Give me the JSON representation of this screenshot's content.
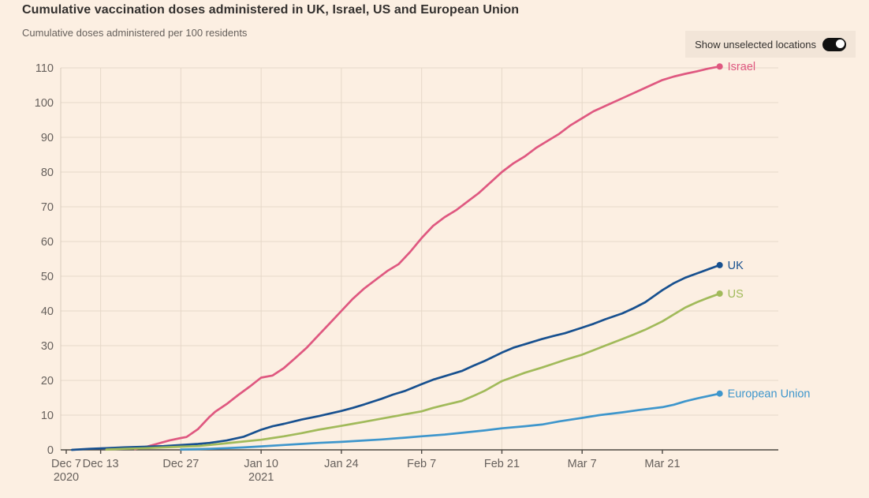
{
  "header": {
    "title": "Cumulative vaccination doses administered in UK, Israel, US and European Union",
    "subtitle": "Cumulative doses administered per 100 residents"
  },
  "controls": {
    "show_unselected_label": "Show unselected locations",
    "toggle_state": "on"
  },
  "colors": {
    "background": "#fcefe2",
    "panel": "#f2e5d8",
    "title_text": "#33302e",
    "muted_text": "#66605c",
    "gridline": "#e6d8c9",
    "axis_line": "#4d4843"
  },
  "chart_data": {
    "type": "line",
    "title": "Cumulative vaccination doses administered in UK, Israel, US and European Union",
    "ylabel": "Cumulative doses administered per 100 residents",
    "xlabel": "",
    "ylim": [
      0,
      110
    ],
    "ytick_step": 10,
    "x_start": "2020-12-07",
    "x_end": "2021-03-31",
    "x_unit": "days since Dec 7 2020",
    "grid": "on",
    "legend_position": "line-end-labels",
    "x_ticks": [
      {
        "day": 0,
        "label": "Dec 7",
        "year": "2020"
      },
      {
        "day": 6,
        "label": "Dec 13"
      },
      {
        "day": 20,
        "label": "Dec 27"
      },
      {
        "day": 34,
        "label": "Jan 10",
        "year": "2021"
      },
      {
        "day": 48,
        "label": "Jan 24"
      },
      {
        "day": 62,
        "label": "Feb 7"
      },
      {
        "day": 76,
        "label": "Feb 21"
      },
      {
        "day": 90,
        "label": "Mar 7"
      },
      {
        "day": 104,
        "label": "Mar 21"
      }
    ],
    "grid_days": [
      6,
      20,
      34,
      48,
      62,
      76,
      90
    ],
    "series": [
      {
        "name": "Israel",
        "color": "#df5880",
        "final_value": 110.4,
        "points": [
          [
            12,
            0.2
          ],
          [
            14,
            0.9
          ],
          [
            16,
            1.8
          ],
          [
            18,
            2.7
          ],
          [
            20,
            3.4
          ],
          [
            21,
            3.7
          ],
          [
            23,
            6
          ],
          [
            25,
            9.5
          ],
          [
            26,
            11
          ],
          [
            28,
            13.2
          ],
          [
            30,
            15.8
          ],
          [
            32,
            18.2
          ],
          [
            34,
            20.8
          ],
          [
            36,
            21.4
          ],
          [
            38,
            23.6
          ],
          [
            40,
            26.5
          ],
          [
            42,
            29.5
          ],
          [
            44,
            33
          ],
          [
            46,
            36.5
          ],
          [
            48,
            40
          ],
          [
            50,
            43.5
          ],
          [
            52,
            46.5
          ],
          [
            54,
            49
          ],
          [
            56,
            51.5
          ],
          [
            58,
            53.5
          ],
          [
            60,
            57
          ],
          [
            62,
            61
          ],
          [
            64,
            64.5
          ],
          [
            66,
            67
          ],
          [
            68,
            69
          ],
          [
            70,
            71.5
          ],
          [
            72,
            74
          ],
          [
            74,
            77
          ],
          [
            76,
            80
          ],
          [
            78,
            82.5
          ],
          [
            80,
            84.5
          ],
          [
            82,
            87
          ],
          [
            84,
            89
          ],
          [
            86,
            91
          ],
          [
            88,
            93.5
          ],
          [
            90,
            95.5
          ],
          [
            92,
            97.5
          ],
          [
            94,
            99
          ],
          [
            96,
            100.5
          ],
          [
            98,
            102
          ],
          [
            100,
            103.5
          ],
          [
            102,
            105
          ],
          [
            104,
            106.5
          ],
          [
            106,
            107.5
          ],
          [
            108,
            108.3
          ],
          [
            110,
            109
          ],
          [
            112,
            109.8
          ],
          [
            114,
            110.4
          ]
        ]
      },
      {
        "name": "UK",
        "color": "#17508f",
        "final_value": 53.2,
        "points": [
          [
            1,
            0
          ],
          [
            4,
            0.3
          ],
          [
            7,
            0.5
          ],
          [
            10,
            0.7
          ],
          [
            14,
            0.9
          ],
          [
            17,
            1.1
          ],
          [
            20,
            1.4
          ],
          [
            23,
            1.7
          ],
          [
            25,
            2.0
          ],
          [
            28,
            2.7
          ],
          [
            31,
            3.8
          ],
          [
            34,
            5.8
          ],
          [
            36,
            6.8
          ],
          [
            38,
            7.5
          ],
          [
            41,
            8.7
          ],
          [
            44,
            9.7
          ],
          [
            48,
            11.2
          ],
          [
            50,
            12.1
          ],
          [
            52,
            13.1
          ],
          [
            55,
            14.7
          ],
          [
            57,
            15.9
          ],
          [
            59,
            16.9
          ],
          [
            62,
            18.9
          ],
          [
            64,
            20.2
          ],
          [
            66,
            21.2
          ],
          [
            69,
            22.7
          ],
          [
            71,
            24.2
          ],
          [
            73,
            25.6
          ],
          [
            76,
            28
          ],
          [
            78,
            29.4
          ],
          [
            80,
            30.4
          ],
          [
            83,
            31.9
          ],
          [
            85,
            32.8
          ],
          [
            87,
            33.6
          ],
          [
            90,
            35.2
          ],
          [
            92,
            36.3
          ],
          [
            94,
            37.6
          ],
          [
            97,
            39.3
          ],
          [
            99,
            40.8
          ],
          [
            101,
            42.5
          ],
          [
            104,
            46
          ],
          [
            106,
            48
          ],
          [
            108,
            49.6
          ],
          [
            110,
            50.8
          ],
          [
            112,
            52
          ],
          [
            114,
            53.2
          ]
        ]
      },
      {
        "name": "US",
        "color": "#a1ba5a",
        "final_value": 45.0,
        "points": [
          [
            7,
            0.1
          ],
          [
            10,
            0.3
          ],
          [
            14,
            0.5
          ],
          [
            17,
            0.7
          ],
          [
            20,
            0.9
          ],
          [
            23,
            1.1
          ],
          [
            25,
            1.4
          ],
          [
            28,
            1.9
          ],
          [
            31,
            2.4
          ],
          [
            34,
            2.9
          ],
          [
            36,
            3.4
          ],
          [
            38,
            3.9
          ],
          [
            41,
            4.8
          ],
          [
            44,
            5.8
          ],
          [
            48,
            6.9
          ],
          [
            50,
            7.5
          ],
          [
            52,
            8.1
          ],
          [
            55,
            9
          ],
          [
            57,
            9.6
          ],
          [
            59,
            10.2
          ],
          [
            62,
            11.1
          ],
          [
            64,
            12.1
          ],
          [
            66,
            12.9
          ],
          [
            69,
            14.1
          ],
          [
            71,
            15.5
          ],
          [
            73,
            17
          ],
          [
            76,
            19.8
          ],
          [
            78,
            21
          ],
          [
            80,
            22.2
          ],
          [
            83,
            23.7
          ],
          [
            85,
            24.8
          ],
          [
            87,
            25.9
          ],
          [
            90,
            27.4
          ],
          [
            92,
            28.7
          ],
          [
            94,
            30
          ],
          [
            97,
            31.9
          ],
          [
            99,
            33.2
          ],
          [
            101,
            34.6
          ],
          [
            104,
            37
          ],
          [
            106,
            39
          ],
          [
            108,
            41
          ],
          [
            110,
            42.5
          ],
          [
            112,
            43.8
          ],
          [
            114,
            45.0
          ]
        ]
      },
      {
        "name": "European Union",
        "color": "#3e96cc",
        "final_value": 16.2,
        "points": [
          [
            20,
            0.1
          ],
          [
            23,
            0.2
          ],
          [
            25,
            0.3
          ],
          [
            28,
            0.5
          ],
          [
            31,
            0.7
          ],
          [
            34,
            1
          ],
          [
            38,
            1.4
          ],
          [
            41,
            1.7
          ],
          [
            44,
            2
          ],
          [
            48,
            2.3
          ],
          [
            52,
            2.7
          ],
          [
            55,
            3
          ],
          [
            59,
            3.5
          ],
          [
            62,
            3.9
          ],
          [
            66,
            4.4
          ],
          [
            69,
            4.9
          ],
          [
            73,
            5.6
          ],
          [
            76,
            6.2
          ],
          [
            80,
            6.8
          ],
          [
            83,
            7.3
          ],
          [
            86,
            8.2
          ],
          [
            90,
            9.2
          ],
          [
            93,
            10
          ],
          [
            97,
            10.8
          ],
          [
            100,
            11.5
          ],
          [
            104,
            12.3
          ],
          [
            106,
            13
          ],
          [
            108,
            14
          ],
          [
            110,
            14.8
          ],
          [
            112,
            15.5
          ],
          [
            114,
            16.2
          ]
        ]
      }
    ]
  }
}
